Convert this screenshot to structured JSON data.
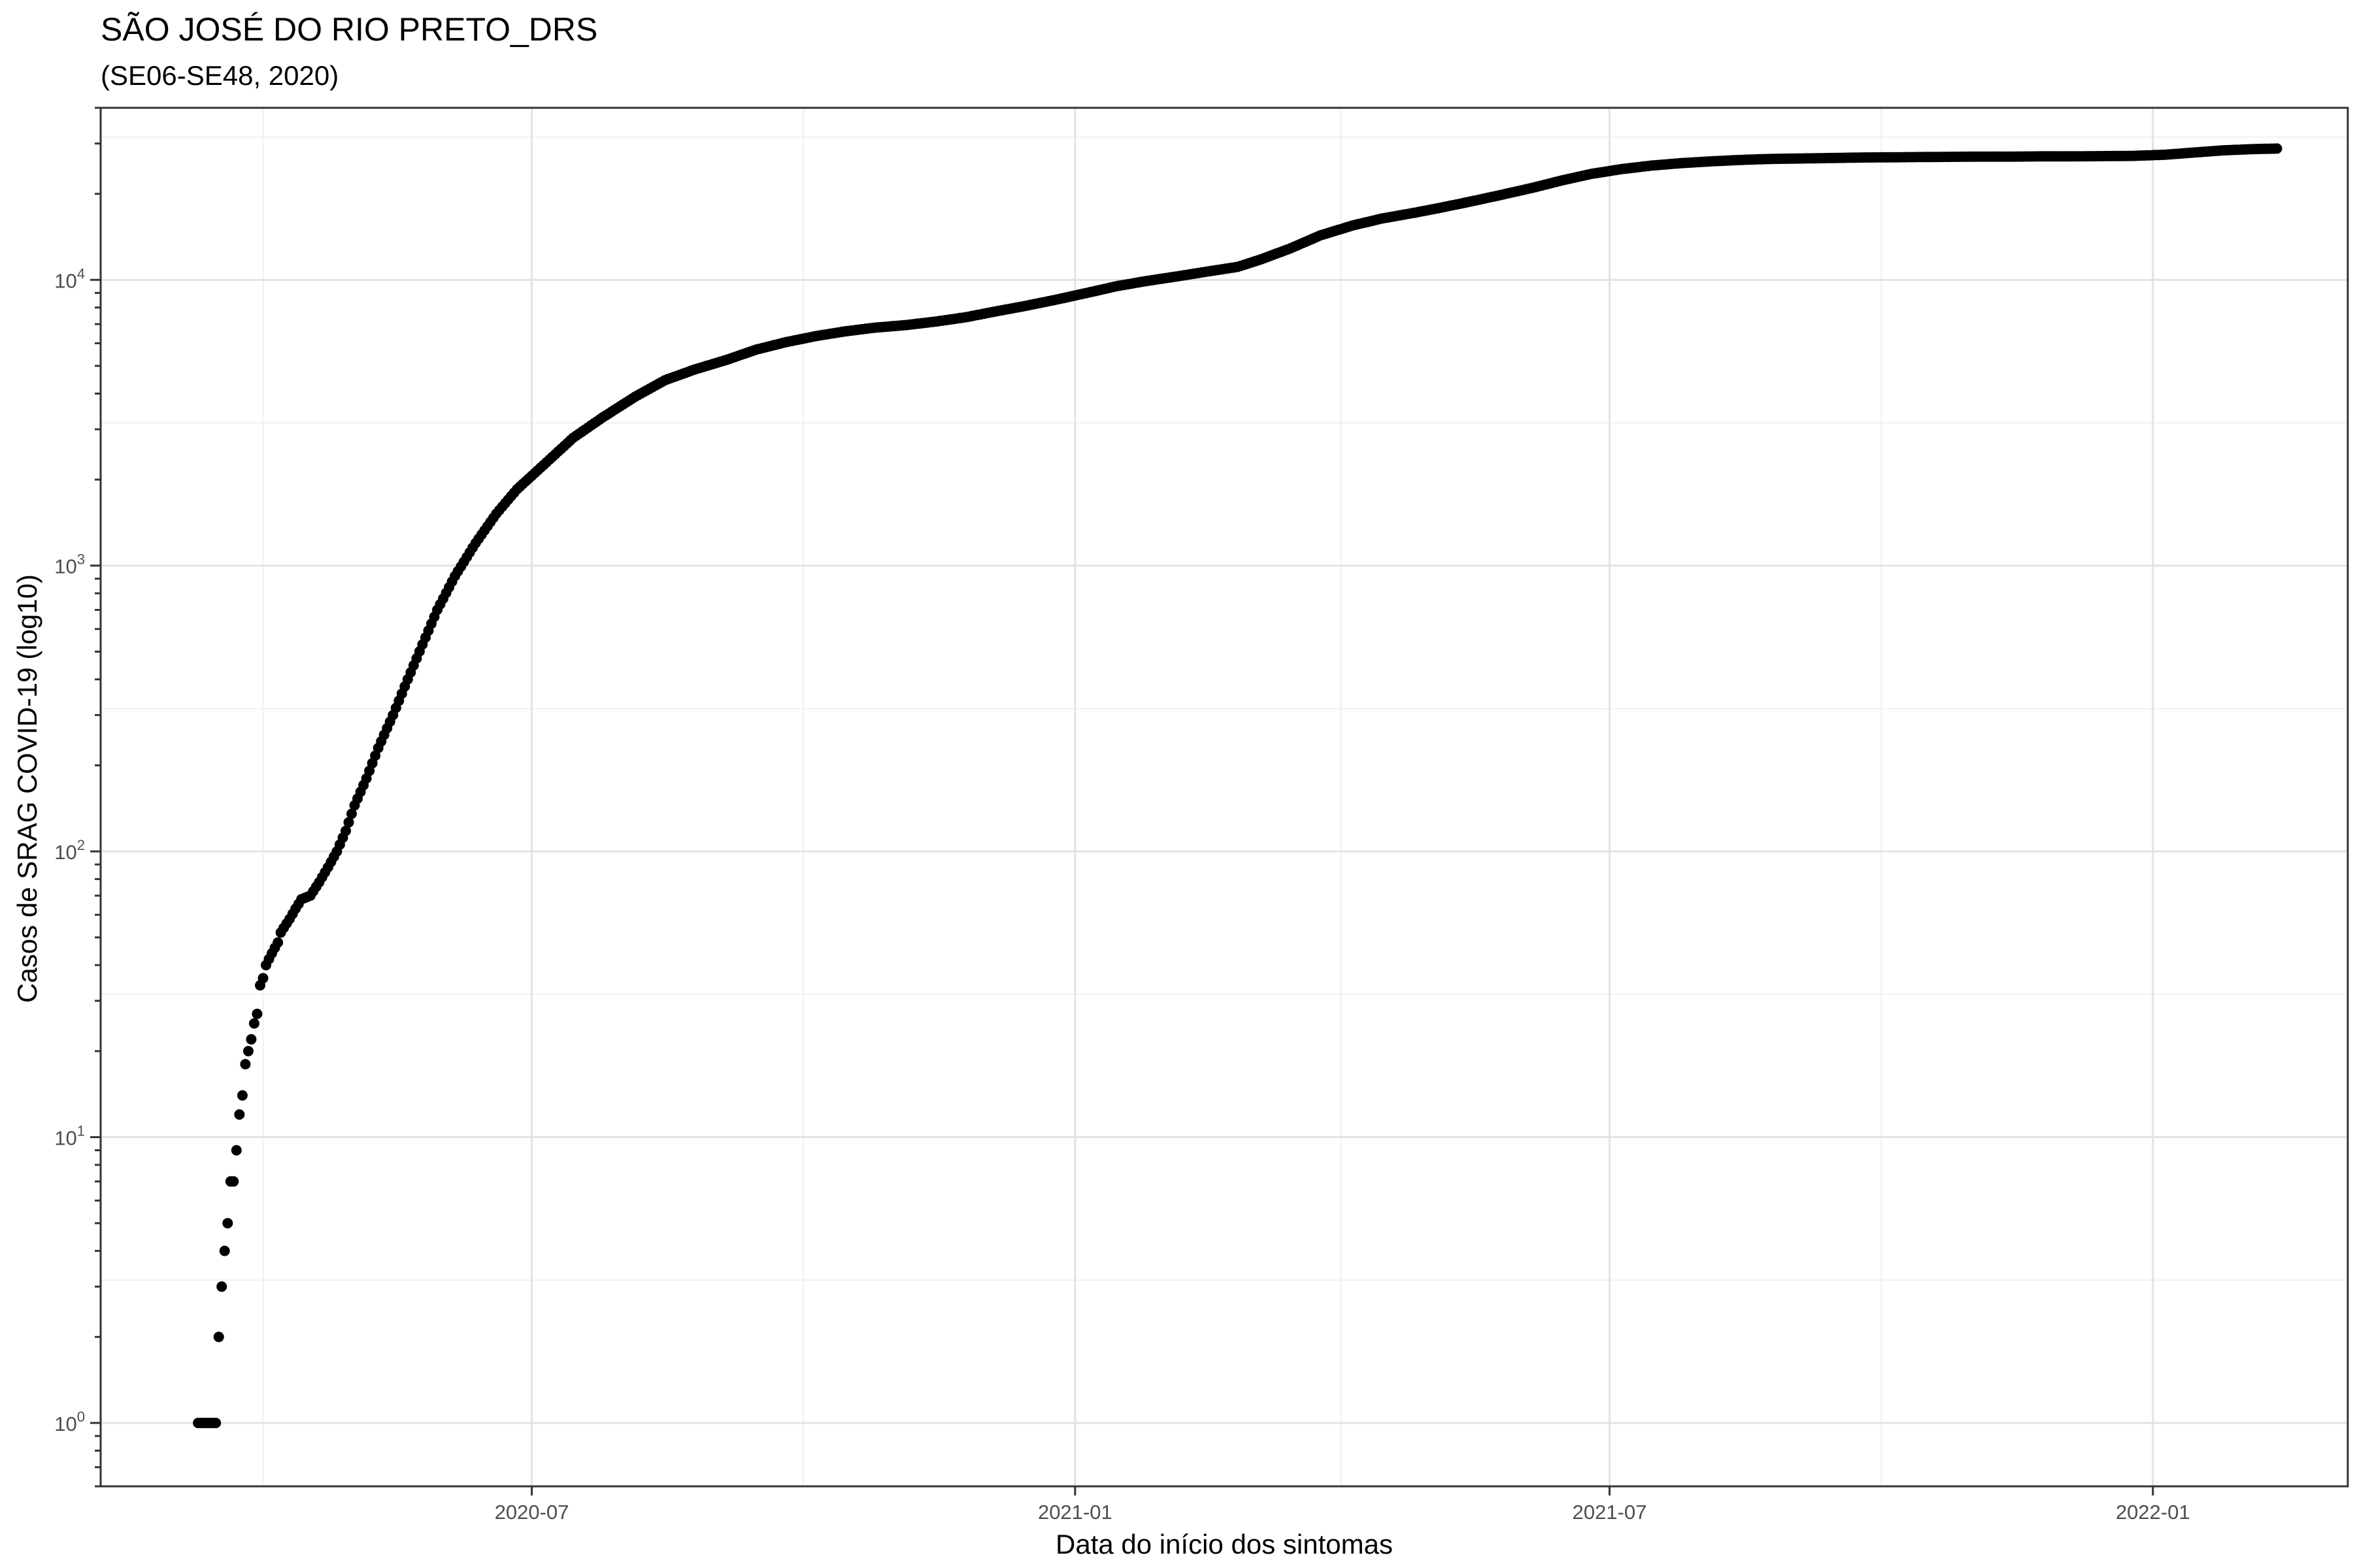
{
  "chart_data": {
    "type": "scatter",
    "title": "SÃO JOSÉ DO RIO PRETO_DRS",
    "subtitle": "(SE06-SE48, 2020)",
    "xlabel": "Data do início dos sintomas",
    "ylabel": "Casos de SRAG COVID-19 (log10)",
    "x_scale": "date",
    "y_scale": "log10",
    "xlim": [
      "2020-02-06",
      "2022-03-08"
    ],
    "ylim": [
      0.6,
      40000
    ],
    "x_ticks": [
      {
        "value": "2020-07-01",
        "label": "2020-07"
      },
      {
        "value": "2021-01-01",
        "label": "2021-01"
      },
      {
        "value": "2021-07-01",
        "label": "2021-07"
      },
      {
        "value": "2022-01-01",
        "label": "2022-01"
      }
    ],
    "x_minor_ticks": [
      "2020-04-01",
      "2020-10-01",
      "2021-04-01",
      "2021-10-01"
    ],
    "y_ticks": [
      {
        "value": 1,
        "base": "10",
        "exp": "0"
      },
      {
        "value": 10,
        "base": "10",
        "exp": "1"
      },
      {
        "value": 100,
        "base": "10",
        "exp": "2"
      },
      {
        "value": 1000,
        "base": "10",
        "exp": "3"
      },
      {
        "value": 10000,
        "base": "10",
        "exp": "4"
      }
    ],
    "y_minor_ticks": [
      3.16,
      31.6,
      316,
      3160,
      31600
    ],
    "grid": true,
    "marker_color": "#000000",
    "series": [
      {
        "x_start": "2020-03-10",
        "x_end": "2022-02-12",
        "points": [
          [
            "2020-03-10",
            1
          ],
          [
            "2020-03-11",
            1
          ],
          [
            "2020-03-12",
            1
          ],
          [
            "2020-03-13",
            1
          ],
          [
            "2020-03-14",
            1
          ],
          [
            "2020-03-15",
            1
          ],
          [
            "2020-03-16",
            1
          ],
          [
            "2020-03-17",
            2
          ],
          [
            "2020-03-18",
            3
          ],
          [
            "2020-03-19",
            4
          ],
          [
            "2020-03-20",
            5
          ],
          [
            "2020-03-21",
            7
          ],
          [
            "2020-03-22",
            7
          ],
          [
            "2020-03-23",
            9
          ],
          [
            "2020-03-24",
            12
          ],
          [
            "2020-03-25",
            14
          ],
          [
            "2020-03-26",
            18
          ],
          [
            "2020-03-27",
            20
          ],
          [
            "2020-03-28",
            22
          ],
          [
            "2020-03-29",
            25
          ],
          [
            "2020-03-30",
            27
          ],
          [
            "2020-03-31",
            34
          ],
          [
            "2020-04-01",
            36
          ],
          [
            "2020-04-02",
            40
          ],
          [
            "2020-04-03",
            42
          ],
          [
            "2020-04-04",
            44
          ],
          [
            "2020-04-05",
            46
          ],
          [
            "2020-04-06",
            48
          ],
          [
            "2020-04-07",
            52
          ],
          [
            "2020-04-08",
            54
          ],
          [
            "2020-04-10",
            58
          ],
          [
            "2020-04-12",
            63
          ],
          [
            "2020-04-14",
            68
          ],
          [
            "2020-04-17",
            70
          ],
          [
            "2020-04-20",
            78
          ],
          [
            "2020-04-23",
            88
          ],
          [
            "2020-04-26",
            100
          ],
          [
            "2020-04-29",
            118
          ],
          [
            "2020-05-02",
            145
          ],
          [
            "2020-05-06",
            180
          ],
          [
            "2020-05-10",
            230
          ],
          [
            "2020-05-15",
            300
          ],
          [
            "2020-05-20",
            400
          ],
          [
            "2020-05-25",
            530
          ],
          [
            "2020-05-30",
            700
          ],
          [
            "2020-06-05",
            920
          ],
          [
            "2020-06-12",
            1200
          ],
          [
            "2020-06-19",
            1520
          ],
          [
            "2020-06-26",
            1850
          ],
          [
            "2020-07-05",
            2250
          ],
          [
            "2020-07-15",
            2800
          ],
          [
            "2020-07-25",
            3300
          ],
          [
            "2020-08-05",
            3900
          ],
          [
            "2020-08-15",
            4450
          ],
          [
            "2020-08-25",
            4850
          ],
          [
            "2020-09-05",
            5250
          ],
          [
            "2020-09-15",
            5700
          ],
          [
            "2020-09-25",
            6050
          ],
          [
            "2020-10-05",
            6350
          ],
          [
            "2020-10-15",
            6600
          ],
          [
            "2020-10-25",
            6800
          ],
          [
            "2020-11-05",
            6950
          ],
          [
            "2020-11-15",
            7150
          ],
          [
            "2020-11-25",
            7400
          ],
          [
            "2020-12-05",
            7750
          ],
          [
            "2020-12-15",
            8100
          ],
          [
            "2020-12-25",
            8500
          ],
          [
            "2021-01-05",
            9000
          ],
          [
            "2021-01-15",
            9500
          ],
          [
            "2021-01-25",
            9900
          ],
          [
            "2021-02-05",
            10300
          ],
          [
            "2021-02-15",
            10700
          ],
          [
            "2021-02-25",
            11100
          ],
          [
            "2021-03-05",
            11800
          ],
          [
            "2021-03-15",
            12900
          ],
          [
            "2021-03-25",
            14300
          ],
          [
            "2021-04-05",
            15500
          ],
          [
            "2021-04-15",
            16400
          ],
          [
            "2021-04-25",
            17100
          ],
          [
            "2021-05-05",
            17900
          ],
          [
            "2021-05-15",
            18800
          ],
          [
            "2021-05-25",
            19800
          ],
          [
            "2021-06-05",
            21000
          ],
          [
            "2021-06-15",
            22300
          ],
          [
            "2021-06-25",
            23500
          ],
          [
            "2021-07-05",
            24400
          ],
          [
            "2021-07-15",
            25100
          ],
          [
            "2021-07-25",
            25600
          ],
          [
            "2021-08-05",
            26000
          ],
          [
            "2021-08-15",
            26300
          ],
          [
            "2021-08-25",
            26500
          ],
          [
            "2021-09-05",
            26600
          ],
          [
            "2021-09-15",
            26700
          ],
          [
            "2021-09-25",
            26800
          ],
          [
            "2021-10-05",
            26850
          ],
          [
            "2021-10-15",
            26900
          ],
          [
            "2021-10-25",
            26950
          ],
          [
            "2021-11-05",
            27000
          ],
          [
            "2021-11-15",
            27000
          ],
          [
            "2021-11-25",
            27050
          ],
          [
            "2021-12-05",
            27050
          ],
          [
            "2021-12-15",
            27100
          ],
          [
            "2021-12-25",
            27150
          ],
          [
            "2022-01-05",
            27400
          ],
          [
            "2022-01-15",
            27900
          ],
          [
            "2022-01-25",
            28400
          ],
          [
            "2022-02-05",
            28700
          ],
          [
            "2022-02-12",
            28800
          ]
        ]
      }
    ]
  }
}
